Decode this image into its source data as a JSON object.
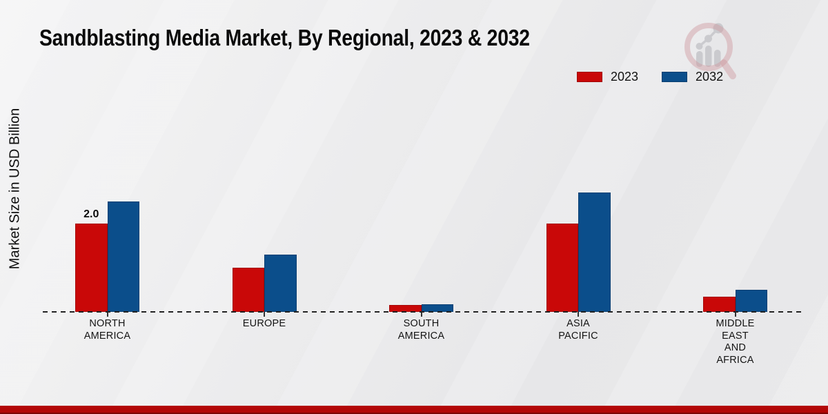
{
  "title": "Sandblasting Media Market, By Regional, 2023 & 2032",
  "chart_data": {
    "type": "bar",
    "title": "Sandblasting Media Market, By Regional, 2023 & 2032",
    "ylabel": "Market Size in USD Billion",
    "xlabel": "",
    "ylim": [
      0,
      3
    ],
    "grid": false,
    "legend_position": "top-right",
    "baseline_style": "dashed",
    "categories": [
      "NORTH AMERICA",
      "EUROPE",
      "SOUTH AMERICA",
      "ASIA PACIFIC",
      "MIDDLE EAST AND AFRICA"
    ],
    "category_label_lines": [
      [
        "NORTH",
        "AMERICA"
      ],
      [
        "EUROPE"
      ],
      [
        "SOUTH",
        "AMERICA"
      ],
      [
        "ASIA",
        "PACIFIC"
      ],
      [
        "MIDDLE",
        "EAST",
        "AND",
        "AFRICA"
      ]
    ],
    "series": [
      {
        "name": "2023",
        "color": "#c90808",
        "values": [
          2.0,
          1.0,
          0.15,
          2.0,
          0.35
        ]
      },
      {
        "name": "2032",
        "color": "#0b4e8b",
        "values": [
          2.5,
          1.3,
          0.17,
          2.7,
          0.5
        ]
      }
    ],
    "data_labels": [
      {
        "series": "2023",
        "category": "NORTH AMERICA",
        "text": "2.0"
      }
    ]
  },
  "branding": {
    "logo_name": "market-research-future-logo",
    "footer_bar_color": "#b30707"
  }
}
